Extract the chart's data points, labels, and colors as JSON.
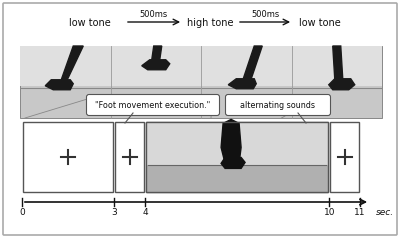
{
  "bg_color": "#ffffff",
  "outer_border_color": "#aaaaaa",
  "tone_labels": [
    "low tone",
    "high tone",
    "low tone"
  ],
  "arrow_label": "500ms",
  "speech_bubble1": "\"Foot movement execution.\"",
  "speech_bubble2": "alternating sounds",
  "timeline_ticks": [
    0,
    3,
    4,
    10,
    11
  ],
  "timeline_label": "sec.",
  "text_color": "#111111",
  "strip_bg": "#d0d0d0",
  "bubble_bg": "#ffffff",
  "bubble_edge": "#555555",
  "box_edge": "#555555",
  "timeline_color": "#222222"
}
